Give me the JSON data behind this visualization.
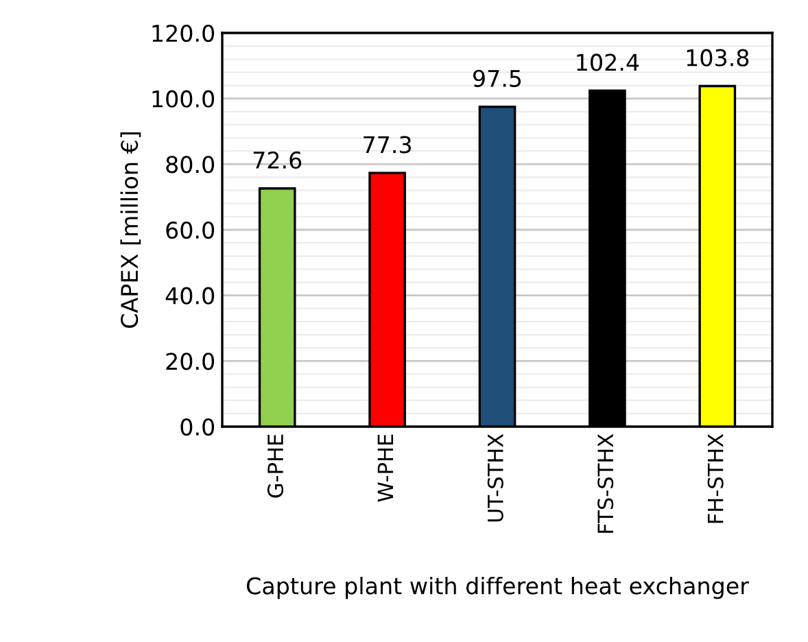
{
  "chart_data": {
    "type": "bar",
    "xlabel": "Capture plant with different heat exchanger",
    "ylabel": "CAPEX [million €]",
    "categories": [
      "G-PHE",
      "W-PHE",
      "UT-STHX",
      "FTS-STHX",
      "FH-STHX"
    ],
    "values": [
      72.6,
      77.3,
      97.5,
      102.4,
      103.8
    ],
    "colors": [
      "#92d050",
      "#ff0000",
      "#1f4e79",
      "#000000",
      "#ffff00"
    ],
    "ylim": [
      0,
      120
    ],
    "yticks": [
      {
        "value": 0,
        "label": "0.0"
      },
      {
        "value": 20,
        "label": "20.0"
      },
      {
        "value": 40,
        "label": "40.0"
      },
      {
        "value": 60,
        "label": "60.0"
      },
      {
        "value": 80,
        "label": "80.0"
      },
      {
        "value": 100,
        "label": "100.0"
      },
      {
        "value": 120,
        "label": "120.0"
      }
    ],
    "grid": "y",
    "data_labels": true
  }
}
